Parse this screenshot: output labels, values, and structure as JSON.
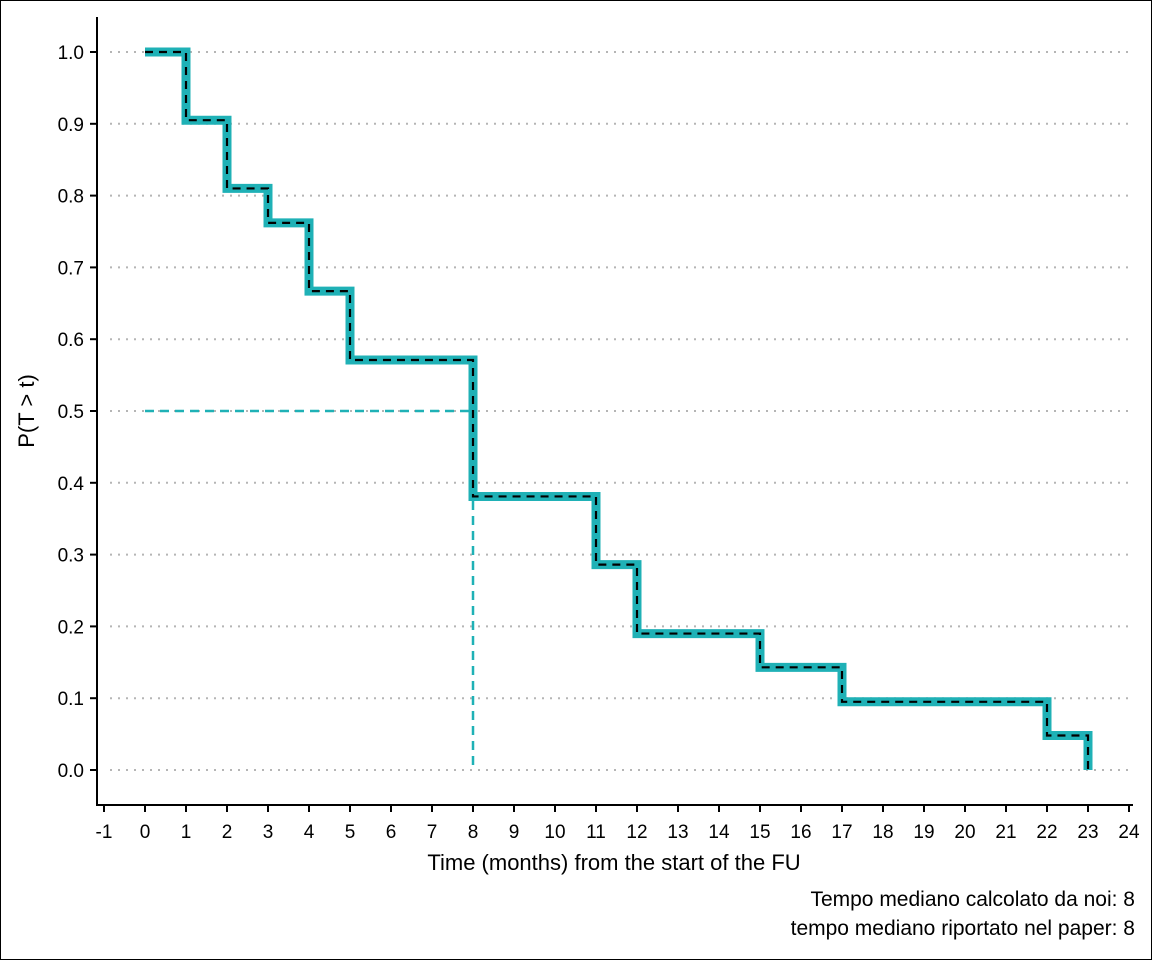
{
  "chart_data": {
    "type": "line",
    "step": true,
    "xlabel": "Time (months) from the start of the FU",
    "ylabel": "P(T > t)",
    "xlim": [
      -1,
      24
    ],
    "ylim": [
      0,
      1
    ],
    "x_ticks": [
      -1,
      0,
      1,
      2,
      3,
      4,
      5,
      6,
      7,
      8,
      9,
      10,
      11,
      12,
      13,
      14,
      15,
      16,
      17,
      18,
      19,
      20,
      21,
      22,
      23,
      24
    ],
    "y_ticks": [
      0.0,
      0.1,
      0.2,
      0.3,
      0.4,
      0.5,
      0.6,
      0.7,
      0.8,
      0.9,
      1.0
    ],
    "y_grid": true,
    "grid_style": "dotted",
    "series": [
      {
        "style": "solid-thick",
        "color": "#1fb1b6",
        "x": [
          0,
          1,
          2,
          3,
          4,
          5,
          8,
          11,
          12,
          15,
          17,
          22,
          23
        ],
        "y": [
          1.0,
          0.905,
          0.81,
          0.762,
          0.667,
          0.571,
          0.381,
          0.286,
          0.19,
          0.143,
          0.095,
          0.048,
          0.0
        ]
      },
      {
        "style": "dashed",
        "color": "#000000",
        "x": [
          0,
          1,
          2,
          3,
          4,
          5,
          8,
          11,
          12,
          15,
          17,
          22,
          23
        ],
        "y": [
          1.0,
          0.905,
          0.81,
          0.762,
          0.667,
          0.571,
          0.381,
          0.286,
          0.19,
          0.143,
          0.095,
          0.048,
          0.0
        ]
      }
    ],
    "median_line": {
      "color": "#1fb1b6",
      "x": 8,
      "y": 0.5
    },
    "caption": [
      "Tempo mediano calcolato da noi: 8",
      "tempo mediano riportato nel paper: 8"
    ]
  }
}
